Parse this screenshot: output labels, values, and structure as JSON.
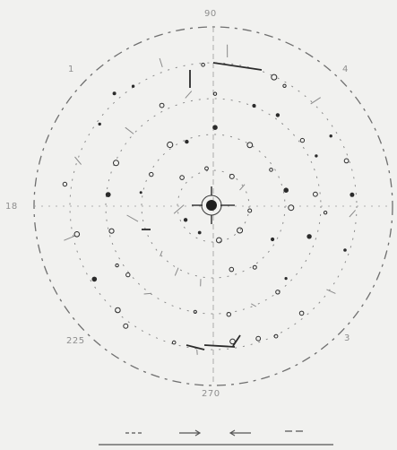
{
  "diagram": {
    "type": "polar-stereographic-projection",
    "angle_labels": {
      "top": "90",
      "upper_right": "4",
      "upper_left": "1",
      "left": "18",
      "lower_left": "225",
      "lower_right": "3",
      "bottom": "270"
    },
    "legend": {
      "item_count": 4
    },
    "colors": {
      "background": "#f1f1ef",
      "ink": "#2b2b2b",
      "faint_ink": "#8a8a8a"
    }
  }
}
